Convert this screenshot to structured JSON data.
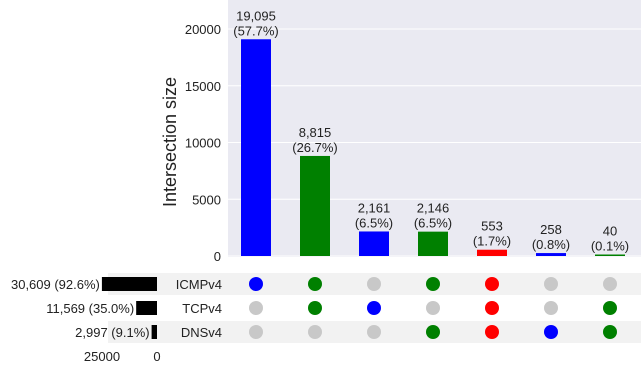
{
  "chart_data": {
    "type": "bar",
    "subtype": "upset",
    "ylabel": "Intersection size",
    "ylim": [
      0,
      20000
    ],
    "yticks": [
      "0",
      "5000",
      "10000",
      "15000",
      "20000"
    ],
    "set_size_axis": {
      "ticks": [
        "25000",
        "0"
      ]
    },
    "grid": true,
    "sets": [
      {
        "name": "ICMPv4",
        "size": 30609,
        "label": "30,609 (92.6%)"
      },
      {
        "name": "TCPv4",
        "size": 11569,
        "label": "11,569 (35.0%)"
      },
      {
        "name": "DNSv4",
        "size": 2997,
        "label": "2,997 (9.1%)"
      }
    ],
    "intersections": [
      {
        "value": 19095,
        "count_label": "19,095",
        "pct_label": "(57.7%)",
        "members": [
          true,
          false,
          false
        ],
        "color": "#0000ff"
      },
      {
        "value": 8815,
        "count_label": "8,815",
        "pct_label": "(26.7%)",
        "members": [
          true,
          true,
          false
        ],
        "color": "#008000"
      },
      {
        "value": 2161,
        "count_label": "2,161",
        "pct_label": "(6.5%)",
        "members": [
          false,
          true,
          false
        ],
        "color": "#0000ff"
      },
      {
        "value": 2146,
        "count_label": "2,146",
        "pct_label": "(6.5%)",
        "members": [
          true,
          false,
          true
        ],
        "color": "#008000"
      },
      {
        "value": 553,
        "count_label": "553",
        "pct_label": "(1.7%)",
        "members": [
          true,
          true,
          true
        ],
        "color": "#ff0000"
      },
      {
        "value": 258,
        "count_label": "258",
        "pct_label": "(0.8%)",
        "members": [
          false,
          false,
          true
        ],
        "color": "#0000ff"
      },
      {
        "value": 40,
        "count_label": "40",
        "pct_label": "(0.1%)",
        "members": [
          false,
          true,
          true
        ],
        "color": "#008000"
      }
    ]
  },
  "colors": {
    "plot_background": "#eaeaf2",
    "grid": "#ffffff",
    "inactive_dot": "#c8c8c8",
    "shading_row": "#f2f2f2",
    "set_bar": "#000000"
  }
}
